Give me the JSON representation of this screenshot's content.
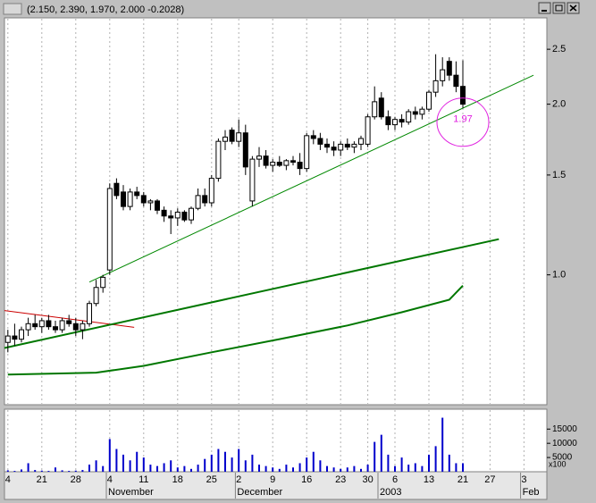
{
  "chart_data": [
    {
      "type": "candlestick",
      "title": "(2.150, 2.390, 1.970, 2.000 -0.2028)",
      "categories": [
        "4",
        null,
        null,
        null,
        null,
        "21",
        null,
        null,
        null,
        null,
        "28",
        null,
        null,
        null,
        null,
        "4",
        null,
        null,
        null,
        null,
        "11",
        null,
        null,
        null,
        null,
        "18",
        null,
        null,
        null,
        null,
        "25",
        null,
        null,
        null,
        "2",
        null,
        null,
        null,
        null,
        "9",
        null,
        null,
        null,
        null,
        "16",
        null,
        null,
        null,
        null,
        "23",
        null,
        null,
        null,
        "30",
        null,
        null,
        null,
        "6",
        null,
        null,
        null,
        null,
        "13",
        null,
        null,
        null,
        null,
        "21",
        null,
        null,
        null,
        "27",
        null,
        null,
        null,
        null,
        "3",
        null,
        null,
        null
      ],
      "month_categories": [
        null,
        null,
        null,
        null,
        null,
        null,
        null,
        null,
        null,
        null,
        null,
        null,
        null,
        null,
        null,
        "November",
        null,
        null,
        null,
        null,
        null,
        null,
        null,
        null,
        null,
        null,
        null,
        null,
        null,
        null,
        null,
        null,
        null,
        null,
        "December",
        null,
        null,
        null,
        null,
        null,
        null,
        null,
        null,
        null,
        null,
        null,
        null,
        null,
        null,
        null,
        null,
        null,
        null,
        null,
        null,
        "2003",
        null,
        null,
        null,
        null,
        null,
        null,
        null,
        null,
        null,
        null,
        null,
        null,
        null,
        null,
        null,
        null,
        null,
        null,
        null,
        null,
        "Feb",
        null,
        null,
        null
      ],
      "open": [
        0.76,
        0.78,
        0.77,
        0.8,
        0.82,
        0.81,
        0.83,
        0.81,
        0.8,
        0.83,
        0.82,
        0.8,
        0.82,
        0.89,
        0.95,
        1.02,
        1.45,
        1.4,
        1.32,
        1.4,
        1.38,
        1.34,
        1.35,
        1.3,
        1.27,
        1.26,
        1.29,
        1.25,
        1.31,
        1.38,
        1.34,
        1.48,
        1.72,
        1.8,
        1.72,
        1.78,
        1.35,
        1.6,
        1.62,
        1.56,
        1.58,
        1.56,
        1.59,
        1.58,
        1.54,
        1.76,
        1.74,
        1.7,
        1.68,
        1.66,
        1.7,
        1.68,
        1.7,
        1.7,
        1.9,
        2.05,
        1.9,
        1.84,
        1.88,
        1.86,
        1.94,
        1.92,
        1.96,
        2.1,
        2.2,
        2.38,
        2.25,
        2.15,
        null,
        null,
        null,
        null,
        null,
        null,
        null,
        null,
        null,
        null,
        null,
        null
      ],
      "high": [
        0.8,
        0.82,
        0.81,
        0.84,
        0.85,
        0.84,
        0.85,
        0.83,
        0.84,
        0.85,
        0.84,
        0.83,
        0.9,
        0.98,
        1.0,
        1.45,
        1.48,
        1.44,
        1.42,
        1.43,
        1.4,
        1.36,
        1.36,
        1.32,
        1.3,
        1.31,
        1.3,
        1.32,
        1.42,
        1.42,
        1.5,
        1.74,
        1.8,
        1.82,
        1.88,
        1.84,
        1.62,
        1.68,
        1.66,
        1.6,
        1.62,
        1.6,
        1.62,
        1.64,
        1.78,
        1.8,
        1.78,
        1.74,
        1.72,
        1.72,
        1.74,
        1.72,
        1.76,
        1.92,
        2.15,
        2.1,
        1.95,
        1.9,
        1.92,
        1.96,
        1.98,
        1.98,
        2.12,
        2.45,
        2.42,
        2.42,
        2.38,
        2.39,
        null,
        null,
        null,
        null,
        null,
        null,
        null,
        null,
        null,
        null,
        null,
        null
      ],
      "low": [
        0.73,
        0.75,
        0.76,
        0.78,
        0.8,
        0.79,
        0.8,
        0.79,
        0.79,
        0.81,
        0.78,
        0.77,
        0.81,
        0.88,
        0.93,
        1.0,
        1.36,
        1.3,
        1.3,
        1.36,
        1.32,
        1.3,
        1.28,
        1.24,
        1.18,
        1.22,
        1.24,
        1.23,
        1.3,
        1.32,
        1.32,
        1.46,
        1.66,
        1.7,
        1.68,
        1.5,
        1.32,
        1.55,
        1.54,
        1.52,
        1.55,
        1.53,
        1.56,
        1.5,
        1.52,
        1.7,
        1.66,
        1.64,
        1.62,
        1.62,
        1.66,
        1.64,
        1.66,
        1.68,
        1.88,
        1.88,
        1.8,
        1.8,
        1.82,
        1.84,
        1.88,
        1.88,
        1.94,
        2.06,
        2.15,
        2.2,
        2.1,
        1.97,
        null,
        null,
        null,
        null,
        null,
        null,
        null,
        null,
        null,
        null,
        null,
        null
      ],
      "close": [
        0.78,
        0.77,
        0.8,
        0.82,
        0.81,
        0.83,
        0.81,
        0.8,
        0.83,
        0.82,
        0.8,
        0.82,
        0.89,
        0.95,
        0.99,
        1.42,
        1.38,
        1.32,
        1.4,
        1.38,
        1.34,
        1.35,
        1.3,
        1.27,
        1.26,
        1.29,
        1.25,
        1.31,
        1.38,
        1.34,
        1.48,
        1.72,
        1.75,
        1.72,
        1.78,
        1.55,
        1.6,
        1.62,
        1.56,
        1.58,
        1.56,
        1.59,
        1.58,
        1.54,
        1.76,
        1.74,
        1.7,
        1.68,
        1.66,
        1.7,
        1.68,
        1.7,
        1.74,
        1.9,
        2.02,
        1.9,
        1.84,
        1.88,
        1.86,
        1.94,
        1.92,
        1.96,
        2.1,
        2.2,
        2.3,
        2.25,
        2.15,
        2.0,
        null,
        null,
        null,
        null,
        null,
        null,
        null,
        null,
        null,
        null,
        null,
        null
      ],
      "ylim": [
        0.59,
        2.84
      ],
      "log_scale": true,
      "yticks": [
        {
          "value": 1,
          "label": "1.0"
        },
        1.5,
        {
          "value": 2,
          "label": "2.0"
        },
        2.5
      ],
      "lines": [
        {
          "color": "#cc0000",
          "width": 1,
          "x": [
            -0.5,
            18.6
          ],
          "values": [
            0.865,
            0.808
          ]
        },
        {
          "color": "#007700",
          "width": 2,
          "x": [
            -0.5,
            72.3
          ],
          "values": [
            0.743,
            1.156
          ]
        },
        {
          "color": "#008800",
          "width": 1,
          "x": [
            12,
            77.4
          ],
          "values": [
            0.971,
            2.25
          ]
        },
        {
          "color": "#007700",
          "width": 2,
          "x": [
            0,
            13,
            20,
            30,
            40,
            50,
            58,
            65,
            67
          ],
          "values": [
            0.667,
            0.672,
            0.691,
            0.73,
            0.77,
            0.814,
            0.859,
            0.904,
            0.957
          ]
        }
      ],
      "annotation": "1.97",
      "annotation_color": "#e020e0"
    },
    {
      "type": "bar",
      "color": "#0000cc",
      "y_label": "x100",
      "values": [
        500,
        300,
        800,
        3000,
        600,
        400,
        300,
        1500,
        500,
        300,
        400,
        600,
        2500,
        4000,
        2000,
        11500,
        8000,
        6000,
        4000,
        7000,
        5000,
        2500,
        2000,
        3000,
        4000,
        1500,
        2000,
        1000,
        2500,
        4500,
        6000,
        8000,
        7000,
        5000,
        8000,
        4000,
        6000,
        2500,
        2000,
        1500,
        1000,
        2500,
        1500,
        3000,
        5000,
        7000,
        4000,
        2000,
        1500,
        1000,
        1500,
        2000,
        1000,
        2500,
        10500,
        13000,
        6000,
        2000,
        5000,
        2500,
        3000,
        2000,
        6000,
        9000,
        19000,
        6000,
        3000,
        3000,
        null,
        null,
        null,
        null,
        null,
        null,
        null,
        null,
        null,
        null,
        null,
        null
      ],
      "ylim": [
        0,
        22000
      ],
      "yticks": [
        5000,
        10000,
        15000
      ]
    }
  ]
}
